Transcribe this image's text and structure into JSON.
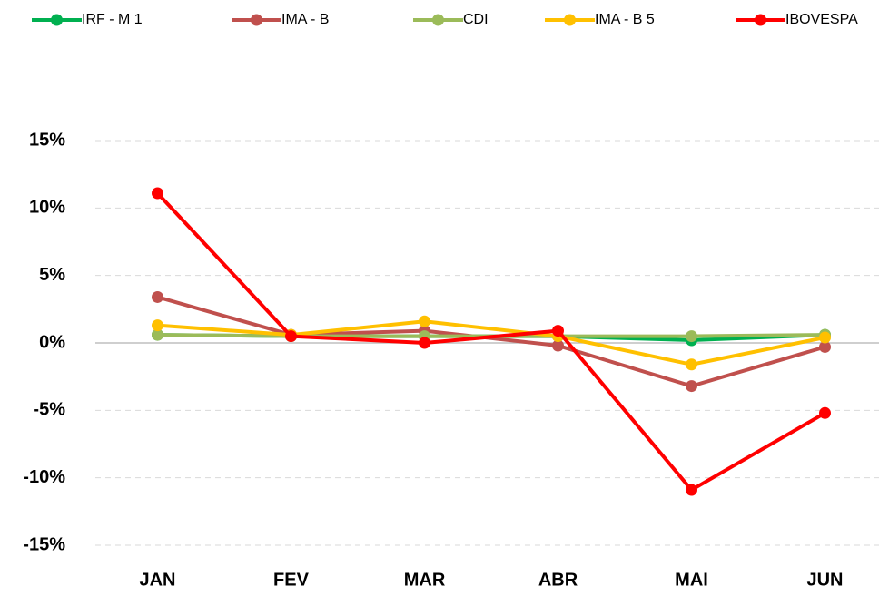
{
  "chart_data": {
    "type": "line",
    "categories": [
      "JAN",
      "FEV",
      "MAR",
      "ABR",
      "MAI",
      "JUN"
    ],
    "series": [
      {
        "name": "IRF - M 1",
        "color": "#00b050",
        "values": [
          0.6,
          0.5,
          0.5,
          0.5,
          0.2,
          0.6
        ]
      },
      {
        "name": "IMA - B",
        "color": "#c0504d",
        "values": [
          3.4,
          0.6,
          0.9,
          -0.2,
          -3.2,
          -0.3
        ]
      },
      {
        "name": "CDI",
        "color": "#9bbb59",
        "values": [
          0.6,
          0.5,
          0.5,
          0.5,
          0.5,
          0.6
        ]
      },
      {
        "name": "IMA - B 5",
        "color": "#ffc000",
        "values": [
          1.3,
          0.6,
          1.6,
          0.5,
          -1.6,
          0.4
        ]
      },
      {
        "name": "IBOVESPA",
        "color": "#ff0000",
        "values": [
          11.1,
          0.5,
          0.0,
          0.9,
          -10.9,
          -5.2
        ]
      }
    ],
    "ylim": [
      -15,
      15
    ],
    "yticks": [
      {
        "value": -15,
        "label": "-15%"
      },
      {
        "value": -10,
        "label": "-10%"
      },
      {
        "value": -5,
        "label": "-5%"
      },
      {
        "value": 0,
        "label": "0%"
      },
      {
        "value": 5,
        "label": "5%"
      },
      {
        "value": 10,
        "label": "10%"
      },
      {
        "value": 15,
        "label": "15%"
      }
    ],
    "grid": true,
    "legend": "top"
  }
}
